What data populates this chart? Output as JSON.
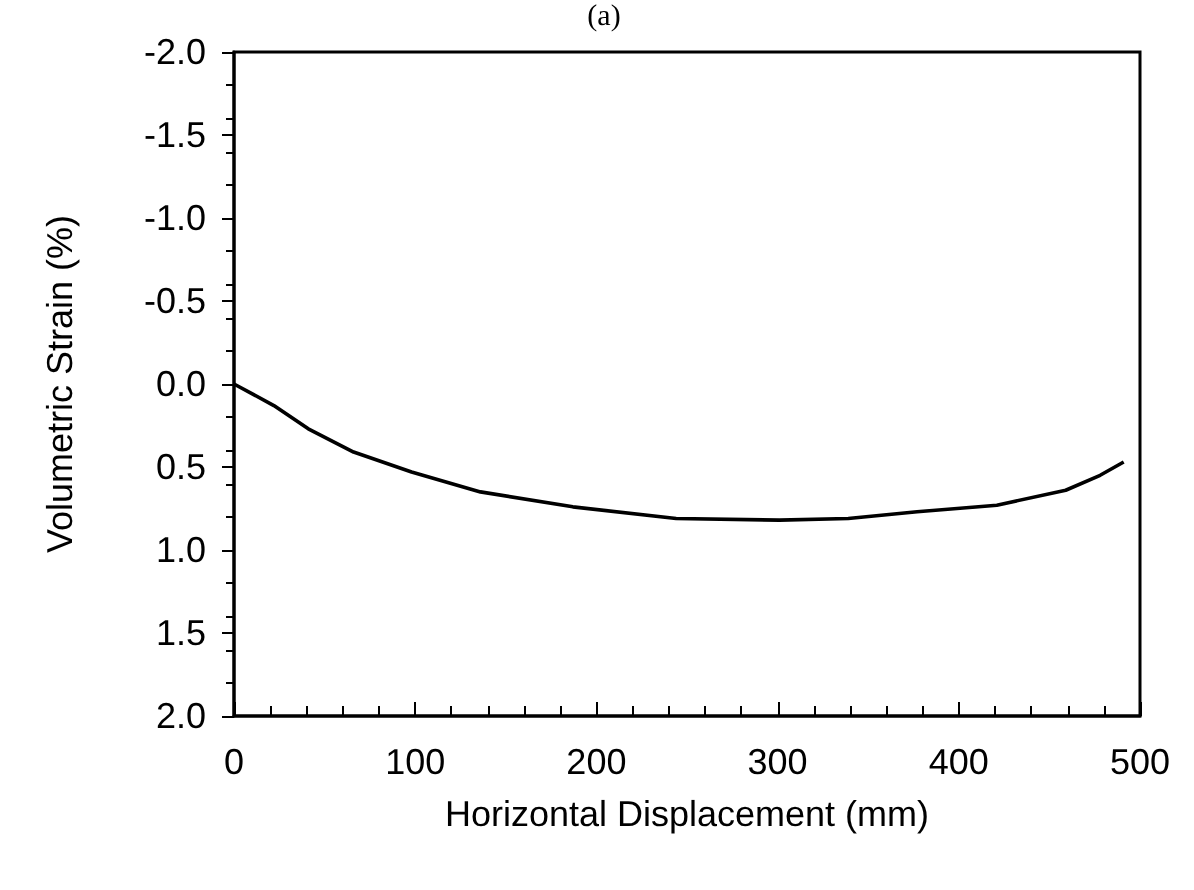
{
  "chart_data": {
    "type": "line",
    "title": "(a)",
    "xlabel": "Horizontal Displacement (mm)",
    "ylabel": "Volumetric Strain (%)",
    "series": [
      {
        "color": "#000000",
        "x": [
          0,
          22,
          41,
          66,
          98,
          136,
          187,
          244,
          301,
          339,
          377,
          421,
          459,
          478,
          491
        ],
        "values": [
          0,
          0.13,
          0.27,
          0.41,
          0.53,
          0.65,
          0.74,
          0.81,
          0.82,
          0.81,
          0.77,
          0.73,
          0.64,
          0.55,
          0.47
        ]
      }
    ],
    "xlim": [
      0,
      500
    ],
    "xticks": [
      0,
      100,
      200,
      300,
      400,
      500
    ],
    "ylim": [
      2,
      -2
    ],
    "yticks": [
      {
        "value": 2,
        "label": "2.0"
      },
      {
        "value": 1.5,
        "label": "1.5"
      },
      {
        "value": 1,
        "label": "1.0"
      },
      {
        "value": 0.5,
        "label": "0.5"
      },
      {
        "value": 0,
        "label": "0.0"
      },
      {
        "value": -0.5,
        "label": "-0.5"
      },
      {
        "value": -1,
        "label": "-1.0"
      },
      {
        "value": -1.5,
        "label": "-1.5"
      },
      {
        "value": -2,
        "label": "-2.0"
      }
    ],
    "grid": false,
    "marker": "none",
    "line_style": "solid"
  }
}
